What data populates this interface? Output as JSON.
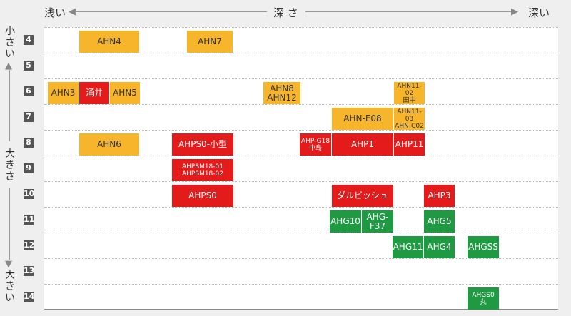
{
  "axis_top": {
    "left": "浅い",
    "center": "深 さ",
    "right": "深い"
  },
  "axis_left": {
    "top": "小さい",
    "middle": "大きさ",
    "bottom": "大きい"
  },
  "rows": [
    "4",
    "5",
    "6",
    "7",
    "8",
    "9",
    "10",
    "11",
    "12",
    "13",
    "14"
  ],
  "items": [
    {
      "name": "AHN4",
      "lines": [
        "AHN4"
      ],
      "color": "orange"
    },
    {
      "name": "AHN7",
      "lines": [
        "AHN7"
      ],
      "color": "orange"
    },
    {
      "name": "AHN3",
      "lines": [
        "AHN3"
      ],
      "color": "orange"
    },
    {
      "name": "涌井",
      "lines": [
        "涌井"
      ],
      "color": "red"
    },
    {
      "name": "AHN5",
      "lines": [
        "AHN5"
      ],
      "color": "orange"
    },
    {
      "name": "AHN8 AHN12",
      "lines": [
        "AHN8",
        "AHN12"
      ],
      "color": "orange"
    },
    {
      "name": "AHN11-02 田中",
      "lines": [
        "AHN11-02",
        "田中"
      ],
      "color": "orange"
    },
    {
      "name": "AHN-E08",
      "lines": [
        "AHN-E08"
      ],
      "color": "orange"
    },
    {
      "name": "AHN11-03 AHN-C02",
      "lines": [
        "AHN11-03",
        "AHN-C02"
      ],
      "color": "orange"
    },
    {
      "name": "AHN6",
      "lines": [
        "AHN6"
      ],
      "color": "orange"
    },
    {
      "name": "AHPS0-小型",
      "lines": [
        "AHPS0-小型"
      ],
      "color": "red"
    },
    {
      "name": "AHP-G18 中島",
      "lines": [
        "AHP-G18",
        "中島"
      ],
      "color": "red"
    },
    {
      "name": "AHP1",
      "lines": [
        "AHP1"
      ],
      "color": "red"
    },
    {
      "name": "AHP11",
      "lines": [
        "AHP11"
      ],
      "color": "red"
    },
    {
      "name": "AHPSM18-01 AHPSM18-02",
      "lines": [
        "AHPSM18-01",
        "AHPSM18-02"
      ],
      "color": "red"
    },
    {
      "name": "AHPS0",
      "lines": [
        "AHPS0"
      ],
      "color": "red"
    },
    {
      "name": "ダルビッシュ",
      "lines": [
        "ダルビッシュ"
      ],
      "color": "red"
    },
    {
      "name": "AHP3",
      "lines": [
        "AHP3"
      ],
      "color": "red"
    },
    {
      "name": "AHG10",
      "lines": [
        "AHG10"
      ],
      "color": "green"
    },
    {
      "name": "AHG-F37",
      "lines": [
        "AHG-F37"
      ],
      "color": "green"
    },
    {
      "name": "AHG5",
      "lines": [
        "AHG5"
      ],
      "color": "green"
    },
    {
      "name": "AHG11",
      "lines": [
        "AHG11"
      ],
      "color": "green"
    },
    {
      "name": "AHG4",
      "lines": [
        "AHG4"
      ],
      "color": "green"
    },
    {
      "name": "AHGSS",
      "lines": [
        "AHGSS"
      ],
      "color": "green"
    },
    {
      "name": "AHGS0 丸",
      "lines": [
        "AHGS0",
        "丸"
      ],
      "color": "green"
    }
  ]
}
